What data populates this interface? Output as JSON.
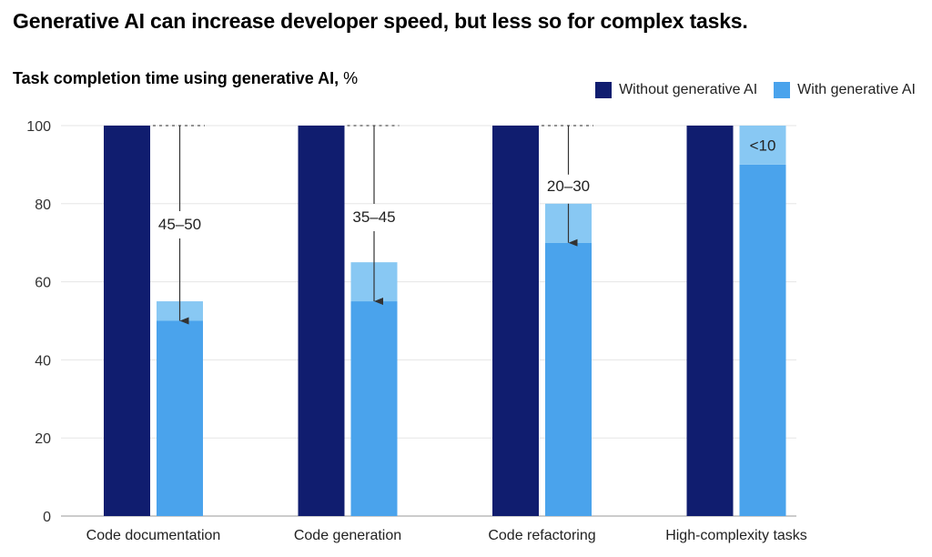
{
  "title": "Generative AI can increase developer speed, but less so for complex tasks.",
  "chart_data": {
    "type": "bar",
    "title": "Task completion time using generative AI,",
    "unit": "%",
    "categories": [
      "Code documentation",
      "Code generation",
      "Code refactoring",
      "High-complexity tasks"
    ],
    "series": [
      {
        "name": "Without generative AI",
        "values": [
          100,
          100,
          100,
          100
        ],
        "color": "#101d6f"
      },
      {
        "name": "With generative AI",
        "range_low": [
          50,
          55,
          70,
          90
        ],
        "range_high": [
          55,
          65,
          80,
          100
        ],
        "color": "#4aa3ec",
        "range_color": "#88c8f3"
      }
    ],
    "annotations": [
      "45–50",
      "35–45",
      "20–30",
      "<10"
    ],
    "yticks": [
      0,
      20,
      40,
      60,
      80,
      100
    ],
    "ylim": [
      0,
      100
    ],
    "grid": true,
    "legend_position": "top-right"
  }
}
